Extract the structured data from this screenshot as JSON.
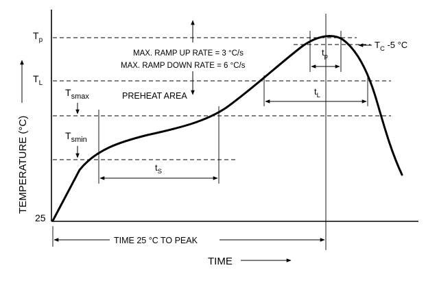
{
  "labels": {
    "tp_level": "T",
    "tp_level_sub": "p",
    "tl_level": "T",
    "tl_level_sub": "L",
    "tsmax": "T",
    "tsmax_sub": "smax",
    "tsmin": "T",
    "tsmin_sub": "smin",
    "t25": "25",
    "ramp_up": "MAX. RAMP UP RATE = 3 °C/s",
    "ramp_down": "MAX. RAMP DOWN RATE = 6 °C/s",
    "preheat": "PREHEAT AREA",
    "tc_main": "T",
    "tc_sub": "C",
    "tc_suffix": " -5 °C",
    "tp_dur": "t",
    "tp_dur_sub": "p",
    "tl_dur": "t",
    "tl_dur_sub": "L",
    "ts_dur": "t",
    "ts_dur_sub": "S",
    "time_to_peak": "TIME 25 °C TO PEAK",
    "x_axis": "TIME",
    "y_axis": "TEMPERATURE (°C)"
  }
}
